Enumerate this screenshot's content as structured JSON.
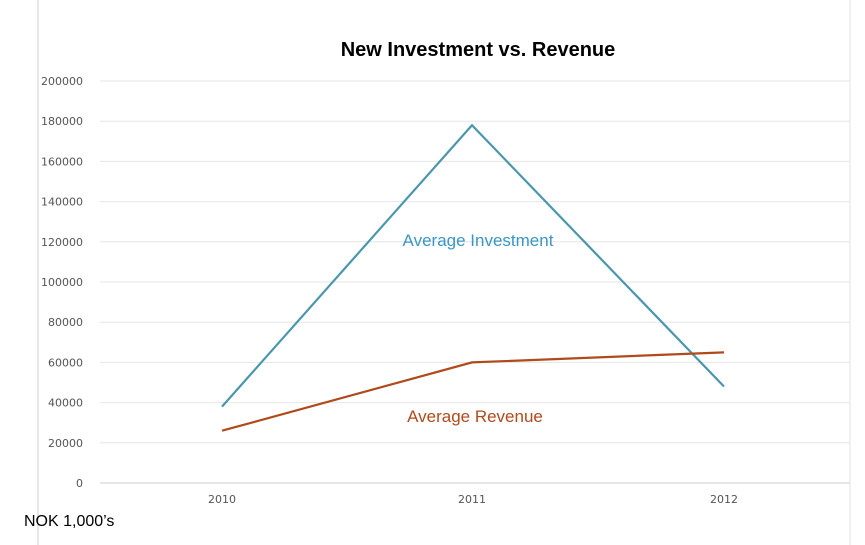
{
  "chart_data": {
    "type": "line",
    "title": "New Investment vs. Revenue",
    "xlabel": "",
    "ylabel": "",
    "unit_note": "NOK 1,000’s",
    "categories": [
      "2010",
      "2011",
      "2012"
    ],
    "ylim": [
      0,
      200000
    ],
    "yticks": [
      0,
      20000,
      40000,
      60000,
      80000,
      100000,
      120000,
      140000,
      160000,
      180000,
      200000
    ],
    "grid": true,
    "legend": "none",
    "series": [
      {
        "name": "Average Investment",
        "color": "#4a97ad",
        "values": [
          38000,
          178000,
          48000
        ]
      },
      {
        "name": "Average Revenue",
        "color": "#b04a1c",
        "values": [
          26000,
          60000,
          65000
        ]
      }
    ]
  },
  "colors": {
    "grid": "#e6e6e6",
    "axis": "#cccccc",
    "frame": "#d0d0d0"
  }
}
